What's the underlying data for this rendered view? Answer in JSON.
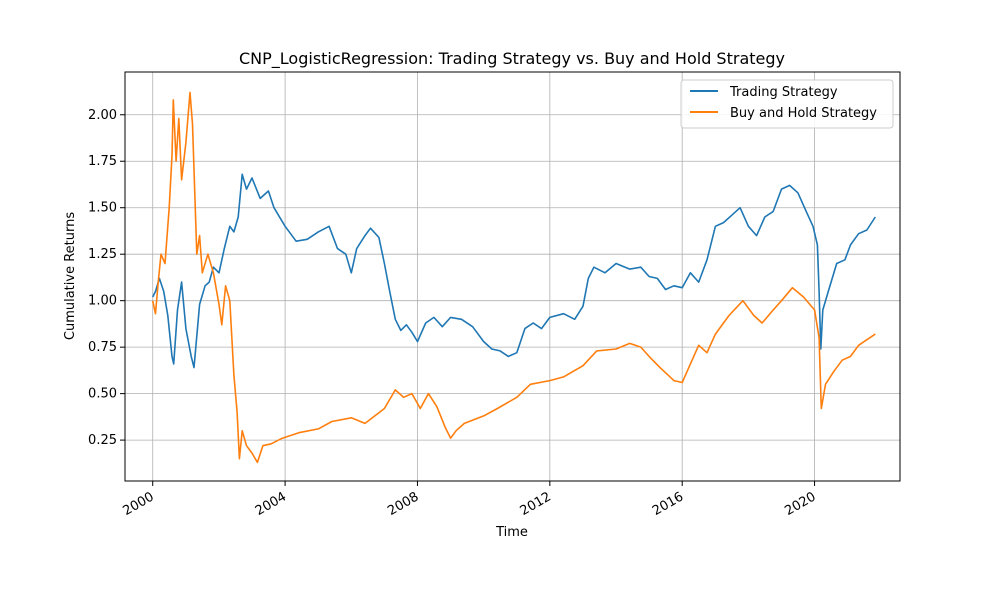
{
  "chart_data": {
    "type": "line",
    "title": "CNP_LogisticRegression: Trading Strategy vs. Buy and Hold Strategy",
    "xlabel": "Time",
    "ylabel": "Cumulative Returns",
    "xlim": [
      "1999-03-01",
      "2022-08-01"
    ],
    "ylim": [
      0.03,
      2.23
    ],
    "x_ticks": [
      "2000",
      "2004",
      "2008",
      "2012",
      "2016",
      "2020"
    ],
    "y_ticks": [
      "0.25",
      "0.50",
      "0.75",
      "1.00",
      "1.25",
      "1.50",
      "1.75",
      "2.00"
    ],
    "grid": true,
    "legend_position": "top-right",
    "series": [
      {
        "name": "Trading Strategy",
        "color": "#1f77b4",
        "points": [
          [
            "2000-01-01",
            1.02
          ],
          [
            "2000-02-01",
            1.05
          ],
          [
            "2000-03-15",
            1.12
          ],
          [
            "2000-05-01",
            1.05
          ],
          [
            "2000-06-15",
            0.92
          ],
          [
            "2000-08-01",
            0.7
          ],
          [
            "2000-08-20",
            0.66
          ],
          [
            "2000-10-01",
            0.95
          ],
          [
            "2000-11-15",
            1.1
          ],
          [
            "2001-01-01",
            0.85
          ],
          [
            "2001-03-01",
            0.7
          ],
          [
            "2001-04-01",
            0.64
          ],
          [
            "2001-06-01",
            0.98
          ],
          [
            "2001-08-01",
            1.08
          ],
          [
            "2001-09-15",
            1.1
          ],
          [
            "2001-11-01",
            1.18
          ],
          [
            "2002-01-01",
            1.15
          ],
          [
            "2002-03-01",
            1.28
          ],
          [
            "2002-05-01",
            1.4
          ],
          [
            "2002-06-15",
            1.37
          ],
          [
            "2002-08-01",
            1.45
          ],
          [
            "2002-09-15",
            1.68
          ],
          [
            "2002-11-01",
            1.6
          ],
          [
            "2003-01-01",
            1.66
          ],
          [
            "2003-04-01",
            1.55
          ],
          [
            "2003-07-01",
            1.59
          ],
          [
            "2003-09-01",
            1.5
          ],
          [
            "2004-01-01",
            1.4
          ],
          [
            "2004-05-01",
            1.32
          ],
          [
            "2004-09-01",
            1.33
          ],
          [
            "2005-01-01",
            1.37
          ],
          [
            "2005-05-01",
            1.4
          ],
          [
            "2005-08-01",
            1.28
          ],
          [
            "2005-11-01",
            1.25
          ],
          [
            "2006-01-01",
            1.15
          ],
          [
            "2006-03-01",
            1.28
          ],
          [
            "2006-06-01",
            1.35
          ],
          [
            "2006-08-01",
            1.39
          ],
          [
            "2006-11-01",
            1.34
          ],
          [
            "2007-01-01",
            1.2
          ],
          [
            "2007-03-01",
            1.05
          ],
          [
            "2007-05-01",
            0.9
          ],
          [
            "2007-07-01",
            0.84
          ],
          [
            "2007-09-01",
            0.87
          ],
          [
            "2007-11-01",
            0.83
          ],
          [
            "2008-01-01",
            0.78
          ],
          [
            "2008-04-01",
            0.88
          ],
          [
            "2008-07-01",
            0.91
          ],
          [
            "2008-10-01",
            0.86
          ],
          [
            "2009-01-01",
            0.91
          ],
          [
            "2009-05-01",
            0.9
          ],
          [
            "2009-09-01",
            0.86
          ],
          [
            "2010-01-01",
            0.78
          ],
          [
            "2010-04-01",
            0.74
          ],
          [
            "2010-07-01",
            0.73
          ],
          [
            "2010-10-01",
            0.7
          ],
          [
            "2011-01-01",
            0.72
          ],
          [
            "2011-04-01",
            0.85
          ],
          [
            "2011-07-01",
            0.88
          ],
          [
            "2011-10-01",
            0.85
          ],
          [
            "2012-01-01",
            0.91
          ],
          [
            "2012-06-01",
            0.93
          ],
          [
            "2012-10-01",
            0.9
          ],
          [
            "2013-01-01",
            0.97
          ],
          [
            "2013-03-01",
            1.12
          ],
          [
            "2013-05-01",
            1.18
          ],
          [
            "2013-09-01",
            1.15
          ],
          [
            "2014-01-01",
            1.2
          ],
          [
            "2014-06-01",
            1.17
          ],
          [
            "2014-10-01",
            1.18
          ],
          [
            "2015-01-01",
            1.13
          ],
          [
            "2015-04-01",
            1.12
          ],
          [
            "2015-07-01",
            1.06
          ],
          [
            "2015-10-01",
            1.08
          ],
          [
            "2016-01-01",
            1.07
          ],
          [
            "2016-04-01",
            1.15
          ],
          [
            "2016-07-01",
            1.1
          ],
          [
            "2016-10-01",
            1.22
          ],
          [
            "2017-01-01",
            1.4
          ],
          [
            "2017-04-01",
            1.42
          ],
          [
            "2017-07-01",
            1.46
          ],
          [
            "2017-10-01",
            1.5
          ],
          [
            "2018-01-01",
            1.4
          ],
          [
            "2018-04-01",
            1.35
          ],
          [
            "2018-07-01",
            1.45
          ],
          [
            "2018-10-01",
            1.48
          ],
          [
            "2019-01-01",
            1.6
          ],
          [
            "2019-04-01",
            1.62
          ],
          [
            "2019-07-01",
            1.58
          ],
          [
            "2019-10-01",
            1.48
          ],
          [
            "2019-12-15",
            1.4
          ],
          [
            "2020-02-01",
            1.3
          ],
          [
            "2020-02-20",
            1.05
          ],
          [
            "2020-03-10",
            0.74
          ],
          [
            "2020-04-01",
            0.95
          ],
          [
            "2020-06-01",
            1.05
          ],
          [
            "2020-09-01",
            1.2
          ],
          [
            "2020-12-01",
            1.22
          ],
          [
            "2021-02-01",
            1.3
          ],
          [
            "2021-05-01",
            1.36
          ],
          [
            "2021-08-01",
            1.38
          ],
          [
            "2021-11-01",
            1.45
          ]
        ]
      },
      {
        "name": "Buy and Hold Strategy",
        "color": "#ff7f0e",
        "points": [
          [
            "2000-01-01",
            1.0
          ],
          [
            "2000-02-01",
            0.93
          ],
          [
            "2000-03-01",
            1.1
          ],
          [
            "2000-04-01",
            1.25
          ],
          [
            "2000-05-15",
            1.2
          ],
          [
            "2000-07-01",
            1.5
          ],
          [
            "2000-08-01",
            1.78
          ],
          [
            "2000-08-15",
            2.08
          ],
          [
            "2000-09-15",
            1.75
          ],
          [
            "2000-10-15",
            1.98
          ],
          [
            "2000-11-15",
            1.65
          ],
          [
            "2001-01-01",
            1.85
          ],
          [
            "2001-02-15",
            2.12
          ],
          [
            "2001-03-15",
            1.95
          ],
          [
            "2001-05-01",
            1.25
          ],
          [
            "2001-06-01",
            1.35
          ],
          [
            "2001-07-01",
            1.15
          ],
          [
            "2001-09-01",
            1.25
          ],
          [
            "2001-11-01",
            1.15
          ],
          [
            "2002-01-01",
            0.98
          ],
          [
            "2002-02-01",
            0.87
          ],
          [
            "2002-03-15",
            1.08
          ],
          [
            "2002-05-01",
            1.0
          ],
          [
            "2002-06-15",
            0.6
          ],
          [
            "2002-07-20",
            0.4
          ],
          [
            "2002-08-15",
            0.15
          ],
          [
            "2002-09-15",
            0.3
          ],
          [
            "2002-11-01",
            0.22
          ],
          [
            "2003-01-01",
            0.18
          ],
          [
            "2003-03-01",
            0.13
          ],
          [
            "2003-05-01",
            0.22
          ],
          [
            "2003-08-01",
            0.23
          ],
          [
            "2003-12-01",
            0.26
          ],
          [
            "2004-06-01",
            0.29
          ],
          [
            "2005-01-01",
            0.31
          ],
          [
            "2005-06-01",
            0.35
          ],
          [
            "2006-01-01",
            0.37
          ],
          [
            "2006-06-01",
            0.34
          ],
          [
            "2007-01-01",
            0.42
          ],
          [
            "2007-05-01",
            0.52
          ],
          [
            "2007-08-01",
            0.48
          ],
          [
            "2007-11-01",
            0.5
          ],
          [
            "2008-02-01",
            0.42
          ],
          [
            "2008-05-01",
            0.5
          ],
          [
            "2008-08-01",
            0.43
          ],
          [
            "2008-11-01",
            0.32
          ],
          [
            "2009-01-01",
            0.26
          ],
          [
            "2009-03-01",
            0.3
          ],
          [
            "2009-06-01",
            0.34
          ],
          [
            "2010-01-01",
            0.38
          ],
          [
            "2010-06-01",
            0.42
          ],
          [
            "2011-01-01",
            0.48
          ],
          [
            "2011-06-01",
            0.55
          ],
          [
            "2012-01-01",
            0.57
          ],
          [
            "2012-06-01",
            0.59
          ],
          [
            "2013-01-01",
            0.65
          ],
          [
            "2013-06-01",
            0.73
          ],
          [
            "2014-01-01",
            0.74
          ],
          [
            "2014-06-01",
            0.77
          ],
          [
            "2014-10-01",
            0.75
          ],
          [
            "2015-01-01",
            0.7
          ],
          [
            "2015-05-01",
            0.64
          ],
          [
            "2015-10-01",
            0.57
          ],
          [
            "2016-01-01",
            0.56
          ],
          [
            "2016-04-01",
            0.66
          ],
          [
            "2016-07-01",
            0.76
          ],
          [
            "2016-10-01",
            0.72
          ],
          [
            "2017-01-01",
            0.82
          ],
          [
            "2017-06-01",
            0.92
          ],
          [
            "2017-11-01",
            1.0
          ],
          [
            "2018-03-01",
            0.92
          ],
          [
            "2018-06-01",
            0.88
          ],
          [
            "2018-10-01",
            0.95
          ],
          [
            "2019-01-01",
            1.0
          ],
          [
            "2019-05-01",
            1.07
          ],
          [
            "2019-09-01",
            1.02
          ],
          [
            "2020-01-01",
            0.95
          ],
          [
            "2020-02-20",
            0.8
          ],
          [
            "2020-03-15",
            0.42
          ],
          [
            "2020-05-01",
            0.55
          ],
          [
            "2020-08-01",
            0.62
          ],
          [
            "2020-11-01",
            0.68
          ],
          [
            "2021-02-01",
            0.7
          ],
          [
            "2021-05-01",
            0.76
          ],
          [
            "2021-08-01",
            0.79
          ],
          [
            "2021-11-01",
            0.82
          ]
        ]
      }
    ]
  }
}
